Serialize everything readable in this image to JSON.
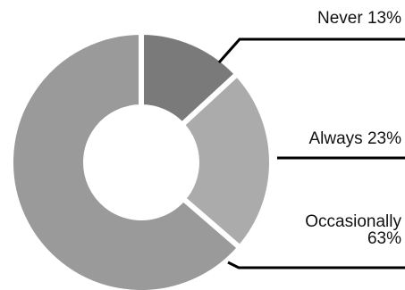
{
  "chart_data": {
    "type": "pie",
    "categories": [
      "Never",
      "Always",
      "Occasionally"
    ],
    "values": [
      13,
      23,
      63
    ],
    "labels": [
      "Never 13%",
      "Always 23%",
      "Occasionally",
      "63%"
    ],
    "colors": {
      "Never": "#7a7a7a",
      "Always": "#ababab",
      "Occasionally": "#9a9a9a",
      "leader": "#000000"
    },
    "donut": true,
    "legend": "none"
  }
}
